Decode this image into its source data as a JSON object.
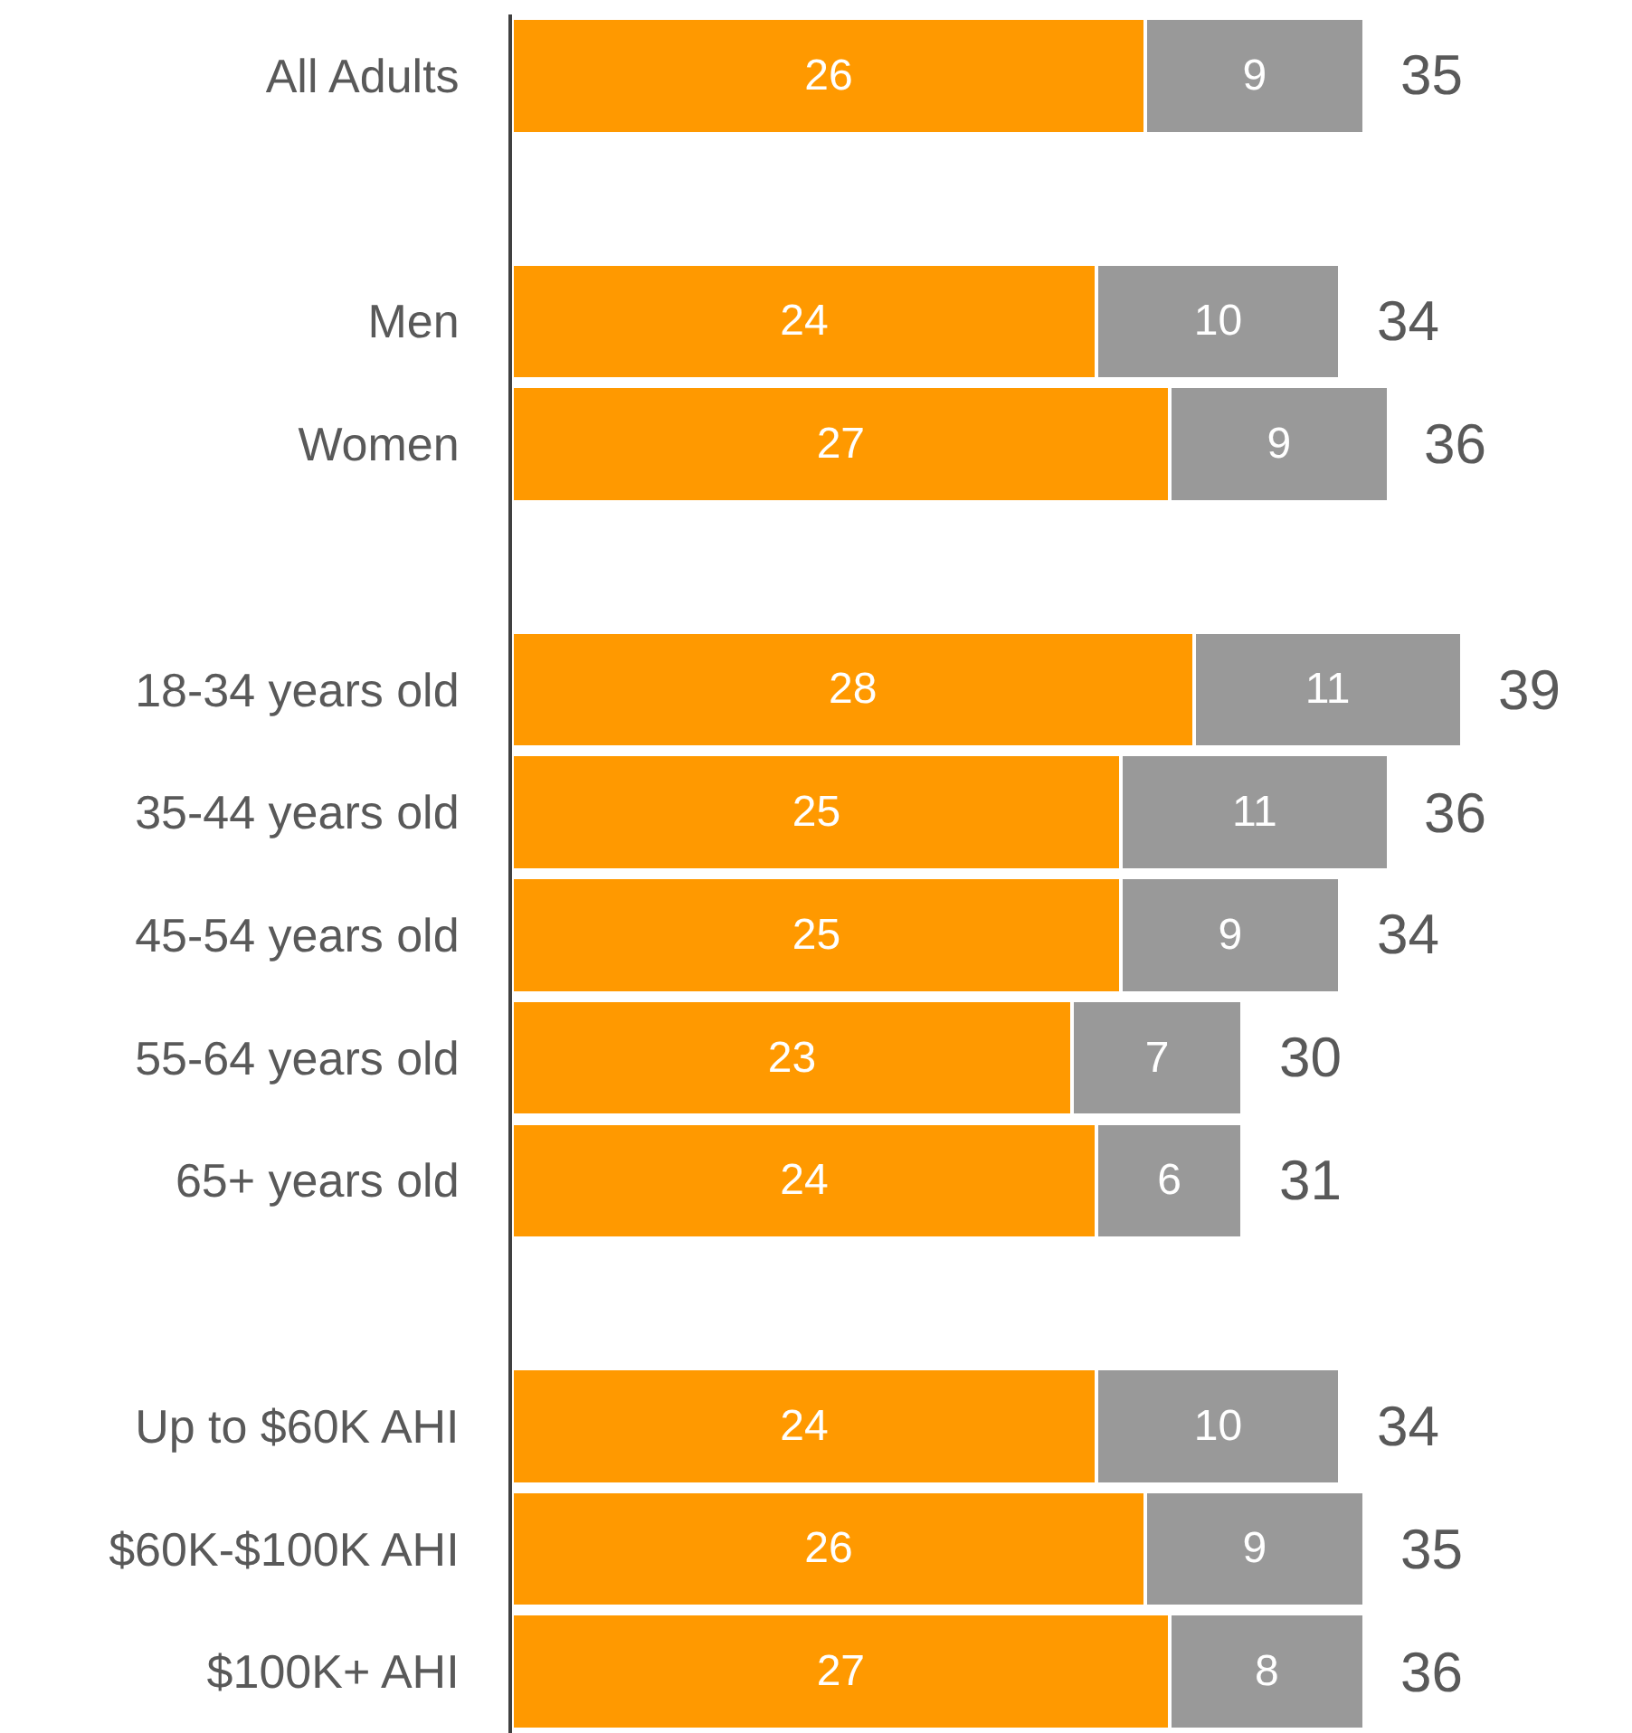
{
  "chart_data": {
    "type": "bar",
    "orientation": "horizontal",
    "stacked": true,
    "categories": [
      "All Adults",
      null,
      "Men",
      "Women",
      null,
      "18-34 years old",
      "35-44 years old",
      "45-54 years old",
      "55-64 years old",
      "65+ years old",
      null,
      "Up to $60K AHI",
      "$60K-$100K AHI",
      "$100K+ AHI"
    ],
    "series": [
      {
        "color": "#ff9900",
        "values": [
          26,
          null,
          24,
          27,
          null,
          28,
          25,
          25,
          23,
          24,
          null,
          24,
          26,
          27
        ]
      },
      {
        "color": "#999999",
        "values": [
          9,
          null,
          10,
          9,
          null,
          11,
          11,
          9,
          7,
          6,
          null,
          10,
          9,
          8
        ]
      }
    ],
    "totals": [
      "35",
      null,
      "34",
      "36",
      null,
      "39",
      "36",
      "34",
      "30",
      "31",
      null,
      "34",
      "35",
      "36"
    ],
    "data_labels": true,
    "xlim": [
      0,
      46
    ],
    "tick_labels": "y"
  }
}
